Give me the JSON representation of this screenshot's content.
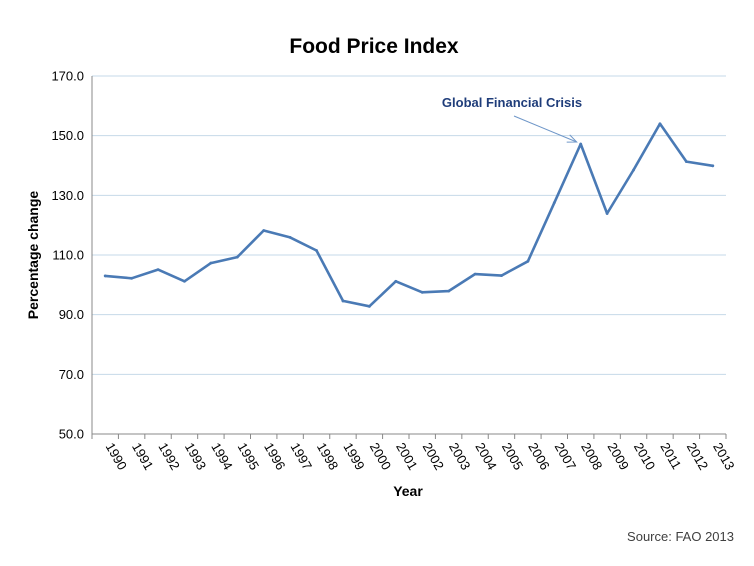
{
  "chart_data": {
    "type": "line",
    "title": "Food Price Index",
    "xlabel": "Year",
    "ylabel": "Percentage change",
    "ylim": [
      50,
      170
    ],
    "yticks": [
      "50.0",
      "70.0",
      "90.0",
      "110.0",
      "130.0",
      "150.0",
      "170.0"
    ],
    "grid": true,
    "legend": "none",
    "categories": [
      "1990",
      "1991",
      "1992",
      "1993",
      "1994",
      "1995",
      "1996",
      "1997",
      "1998",
      "1999",
      "2000",
      "2001",
      "2002",
      "2003",
      "2004",
      "2005",
      "2006",
      "2007",
      "2008",
      "2009",
      "2010",
      "2011",
      "2012",
      "2013"
    ],
    "series": [
      {
        "values": [
          103.0,
          102.2,
          105.1,
          101.2,
          107.3,
          109.3,
          118.2,
          115.9,
          111.5,
          94.6,
          92.8,
          101.2,
          97.5,
          97.9,
          103.6,
          103.1,
          107.9,
          127.5,
          147.2,
          123.9,
          138.5,
          154.0,
          141.3,
          139.9
        ]
      }
    ],
    "annotation": {
      "text": "Global Financial Crisis",
      "target_category": "2008"
    },
    "source": "Source: FAO 2013",
    "colors": {
      "line": "#4a7ab5",
      "grid": "#c6dae8",
      "axis": "#888888",
      "annotation_text": "#1f3d7a",
      "annotation_arrow": "#6e96c8"
    }
  }
}
